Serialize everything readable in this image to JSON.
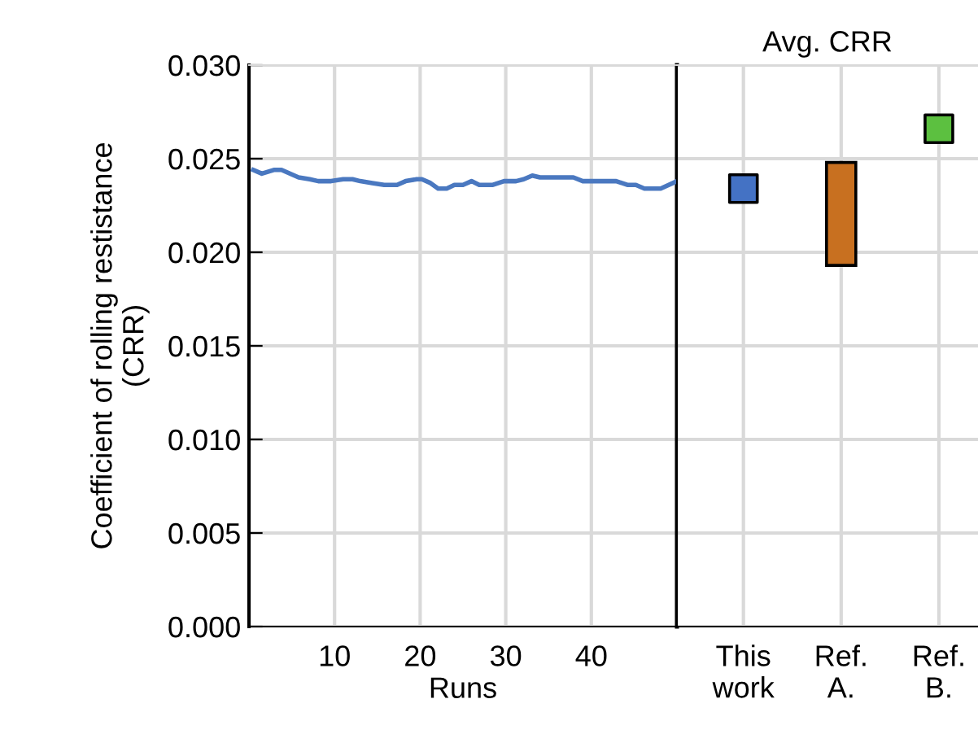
{
  "chart_data": [
    {
      "type": "line",
      "xlabel": "Runs",
      "ylabel": "Coefficient of rolling restistance\n(CRR)",
      "xlim": [
        0,
        50
      ],
      "xticks": [
        10,
        20,
        30,
        40
      ],
      "ylim": [
        0,
        0.03
      ],
      "yticks": [
        {
          "value": 0,
          "label": "0.000"
        },
        {
          "value": 0.005,
          "label": "0.005"
        },
        {
          "value": 0.01,
          "label": "0.010"
        },
        {
          "value": 0.015,
          "label": "0.015"
        },
        {
          "value": 0.02,
          "label": "0.020"
        },
        {
          "value": 0.025,
          "label": "0.025"
        },
        {
          "value": 0.03,
          "label": "0.030"
        }
      ],
      "grid": true,
      "legend": false,
      "series": [
        {
          "color": "#4a78c0",
          "x": [
            0.5,
            1.5,
            2.9,
            3.8,
            5.8,
            7.1,
            8.1,
            9.6,
            11,
            12.1,
            13,
            14.4,
            15.8,
            17.3,
            18.3,
            19.6,
            20.2,
            21.2,
            22.1,
            23.1,
            24,
            25,
            26,
            26.9,
            28.5,
            29.8,
            31.2,
            32.1,
            33.1,
            34,
            35.6,
            37.9,
            39,
            40.8,
            42.9,
            44.2,
            45.2,
            46.2,
            48.1,
            50
          ],
          "values": [
            0.0244,
            0.0242,
            0.0244,
            0.0244,
            0.024,
            0.0239,
            0.0238,
            0.0238,
            0.0239,
            0.0239,
            0.0238,
            0.0237,
            0.0236,
            0.0236,
            0.0238,
            0.0239,
            0.0239,
            0.0237,
            0.0234,
            0.0234,
            0.0236,
            0.0236,
            0.0238,
            0.0236,
            0.0236,
            0.0238,
            0.0238,
            0.0239,
            0.0241,
            0.024,
            0.024,
            0.024,
            0.0238,
            0.0238,
            0.0238,
            0.0236,
            0.0236,
            0.0234,
            0.0234,
            0.0238
          ]
        }
      ]
    },
    {
      "type": "bar",
      "title": "Avg. CRR",
      "categories": [
        "This\nwork",
        "Ref.\nA.",
        "Ref.\nB."
      ],
      "ylim": [
        0,
        0.03
      ],
      "yticks": [
        {
          "value": 0,
          "label": null
        },
        {
          "value": 0.005,
          "label": null
        },
        {
          "value": 0.01,
          "label": null
        },
        {
          "value": 0.015,
          "label": null
        },
        {
          "value": 0.02,
          "label": null
        },
        {
          "value": 0.025,
          "label": null
        },
        {
          "value": 0.03,
          "label": null
        }
      ],
      "tick_labels": "x",
      "grid": true,
      "legend": false,
      "marker": "square",
      "series": [
        {
          "type": "scatter",
          "colors": [
            "#4472c4",
            null,
            "#5cc040"
          ],
          "values": [
            0.0234,
            null,
            0.0266
          ]
        },
        {
          "type": "bar",
          "color": "#c87020",
          "base": [
            null,
            0.0193,
            null
          ],
          "values": [
            null,
            0.0055,
            null
          ]
        }
      ]
    }
  ]
}
